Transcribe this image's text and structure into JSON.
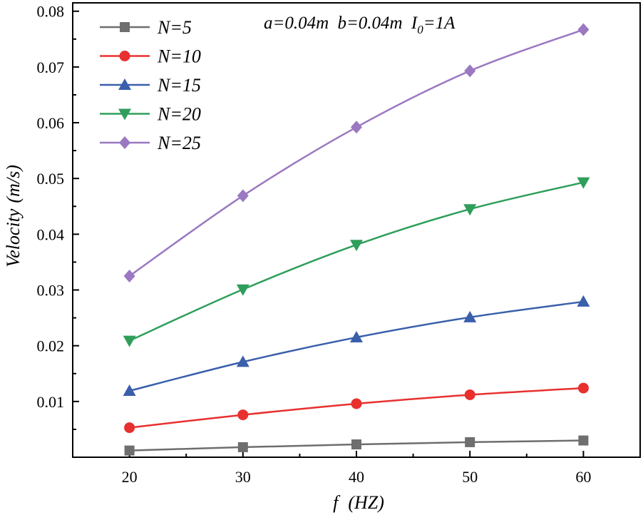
{
  "chart_data": {
    "type": "line",
    "title": "",
    "annotation": {
      "a_label": "a=0.04m",
      "b_label": "b=0.04m",
      "i_symbol": "I",
      "i_subscript": "0",
      "i_value": "=1A"
    },
    "xlabel": {
      "symbol": "f",
      "unit": "(HZ)"
    },
    "ylabel": {
      "quantity": "Velocity",
      "unit": "(m/s)"
    },
    "xlim": [
      15,
      65
    ],
    "ylim": [
      0,
      0.0815
    ],
    "xticks": [
      20,
      30,
      40,
      50,
      60
    ],
    "yticks": [
      0.01,
      0.02,
      0.03,
      0.04,
      0.05,
      0.06,
      0.07,
      0.08
    ],
    "ytick_labels": [
      "0.01",
      "0.02",
      "0.03",
      "0.04",
      "0.05",
      "0.06",
      "0.07",
      "0.08"
    ],
    "legend_position": "top-left",
    "x": [
      20,
      30,
      40,
      50,
      60
    ],
    "series": [
      {
        "name": "N=5",
        "color": "#6e6e6e",
        "marker": "square",
        "values": [
          0.0012,
          0.0018,
          0.0023,
          0.0027,
          0.003
        ]
      },
      {
        "name": "N=10",
        "color": "#e8302f",
        "marker": "circle",
        "values": [
          0.0053,
          0.0076,
          0.0096,
          0.0112,
          0.0124
        ]
      },
      {
        "name": "N=15",
        "color": "#3a5fab",
        "marker": "triangle-up",
        "values": [
          0.0119,
          0.0171,
          0.0215,
          0.0251,
          0.0279
        ]
      },
      {
        "name": "N=20",
        "color": "#2f9e5b",
        "marker": "triangle-down",
        "values": [
          0.0209,
          0.0301,
          0.0381,
          0.0445,
          0.0493
        ]
      },
      {
        "name": "N=25",
        "color": "#9b78c2",
        "marker": "diamond",
        "values": [
          0.0325,
          0.0469,
          0.0592,
          0.0693,
          0.0767
        ]
      }
    ]
  }
}
